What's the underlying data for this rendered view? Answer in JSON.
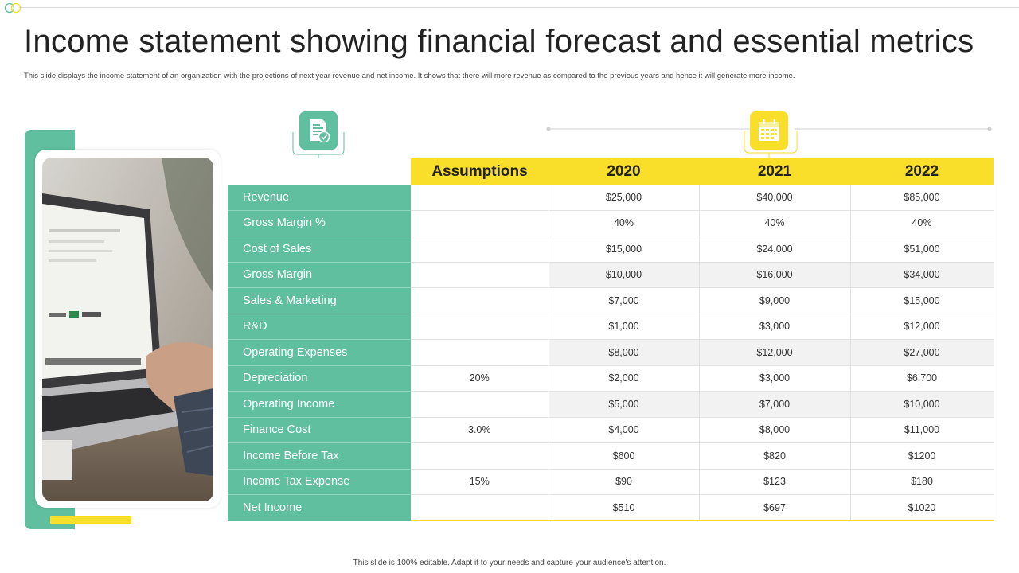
{
  "title": "Income statement showing financial forecast and essential metrics",
  "subtitle": "This slide displays the income statement of an organization with the projections of next year revenue and net income. It shows that there will more revenue as compared to the previous years and hence it will generate more income.",
  "footer": "This slide is 100% editable. Adapt it to your needs and capture your audience's attention.",
  "colors": {
    "accent_green": "#5fbf9f",
    "accent_yellow": "#fadf2a"
  },
  "icons": {
    "left": "document-check-icon",
    "right": "calendar-icon"
  },
  "table": {
    "headers": [
      "Assumptions",
      "2020",
      "2021",
      "2022"
    ],
    "rows": [
      {
        "label": "Revenue",
        "assumption": "",
        "y2020": "$25,000",
        "y2021": "$40,000",
        "y2022": "$85,000"
      },
      {
        "label": "Gross Margin  %",
        "assumption": "",
        "y2020": "40%",
        "y2021": "40%",
        "y2022": "40%"
      },
      {
        "label": "Cost of Sales",
        "assumption": "",
        "y2020": "$15,000",
        "y2021": "$24,000",
        "y2022": "$51,000"
      },
      {
        "label": "Gross Margin",
        "assumption": "",
        "y2020": "$10,000",
        "y2021": "$16,000",
        "y2022": "$34,000"
      },
      {
        "label": "Sales & Marketing",
        "assumption": "",
        "y2020": "$7,000",
        "y2021": "$9,000",
        "y2022": "$15,000"
      },
      {
        "label": "R&D",
        "assumption": "",
        "y2020": "$1,000",
        "y2021": "$3,000",
        "y2022": "$12,000"
      },
      {
        "label": "Operating Expenses",
        "assumption": "",
        "y2020": "$8,000",
        "y2021": "$12,000",
        "y2022": "$27,000"
      },
      {
        "label": "Depreciation",
        "assumption": "20%",
        "y2020": "$2,000",
        "y2021": "$3,000",
        "y2022": "$6,700"
      },
      {
        "label": "Operating Income",
        "assumption": "",
        "y2020": "$5,000",
        "y2021": "$7,000",
        "y2022": "$10,000"
      },
      {
        "label": "Finance Cost",
        "assumption": "3.0%",
        "y2020": "$4,000",
        "y2021": "$8,000",
        "y2022": "$11,000"
      },
      {
        "label": "Income Before Tax",
        "assumption": "",
        "y2020": "$600",
        "y2021": "$820",
        "y2022": "$1200"
      },
      {
        "label": "Income Tax Expense",
        "assumption": "15%",
        "y2020": "$90",
        "y2021": "$123",
        "y2022": "$180"
      },
      {
        "label": "Net Income",
        "assumption": "",
        "y2020": "$510",
        "y2021": "$697",
        "y2022": "$1020"
      }
    ]
  }
}
